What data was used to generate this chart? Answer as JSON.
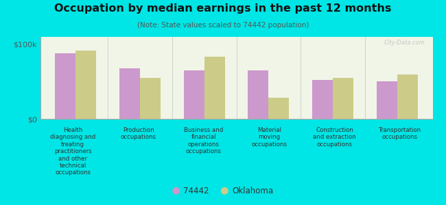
{
  "title": "Occupation by median earnings in the past 12 months",
  "subtitle": "(Note: State values scaled to 74442 population)",
  "categories": [
    "Health\ndiagnosing and\ntreating\npractitioners\nand other\ntechnical\noccupations",
    "Production\noccupations",
    "Business and\nfinancial\noperations\noccupations",
    "Material\nmoving\noccupations",
    "Construction\nand extraction\noccupations",
    "Transportation\noccupations"
  ],
  "values_74442": [
    88000,
    68000,
    65000,
    65000,
    52000,
    50000
  ],
  "values_oklahoma": [
    92000,
    55000,
    83000,
    28000,
    55000,
    60000
  ],
  "color_74442": "#cc99cc",
  "color_oklahoma": "#cccc88",
  "ylim": [
    0,
    110000
  ],
  "ytick_labels": [
    "$0",
    "$100k"
  ],
  "legend_label_74442": "74442",
  "legend_label_oklahoma": "Oklahoma",
  "background_color": "#00e5e5",
  "plot_bg_color": "#f0f5e8",
  "watermark": "City-Data.com"
}
